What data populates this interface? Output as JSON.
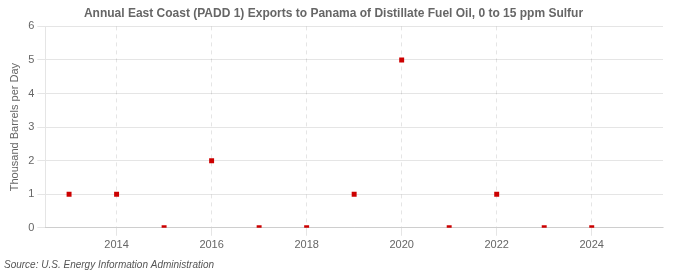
{
  "chart_data": {
    "type": "scatter",
    "title": "Annual East Coast (PADD 1) Exports to Panama of Distillate Fuel Oil, 0 to 15 ppm Sulfur",
    "ylabel": "Thousand Barrels per Day",
    "source": "Source: U.S. Energy Information Administration",
    "x": [
      2013,
      2014,
      2015,
      2016,
      2017,
      2018,
      2019,
      2020,
      2021,
      2022,
      2023,
      2024
    ],
    "values": [
      1,
      1,
      0,
      2,
      0,
      0,
      1,
      5,
      0,
      1,
      0,
      0
    ],
    "color": "#cc0000",
    "marker": "square",
    "xlim": [
      2012.5,
      2025.5
    ],
    "xticks": [
      2014,
      2016,
      2018,
      2020,
      2022,
      2024
    ],
    "ylim": [
      0,
      6
    ],
    "yticks": [
      0,
      1,
      2,
      3,
      4,
      5,
      6
    ],
    "grid": true
  }
}
